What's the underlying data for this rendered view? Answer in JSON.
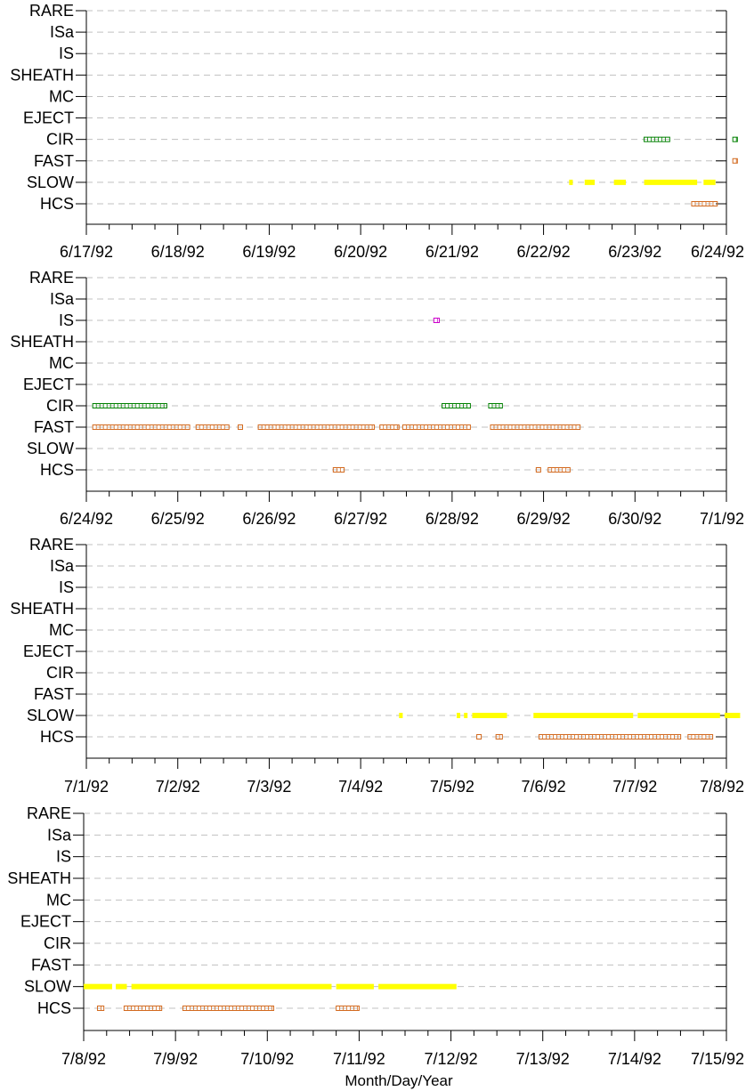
{
  "chart_data": {
    "type": "scatter",
    "xlabel": "Month/Day/Year",
    "categories": [
      "RARE",
      "ISa",
      "IS",
      "SHEATH",
      "MC",
      "EJECT",
      "CIR",
      "FAST",
      "SLOW",
      "HCS"
    ],
    "colors": {
      "SLOW": "#ffff00",
      "HCS": "#d2691e",
      "FAST": "#d2691e",
      "CIR": "#008000",
      "IS": "#cc00cc",
      "grid": "#c0c0c0",
      "axis": "#000000"
    },
    "panels": [
      {
        "ticks": [
          "6/17/92",
          "6/18/92",
          "6/19/92",
          "6/20/92",
          "6/21/92",
          "6/22/92",
          "6/23/92",
          "6/24/92"
        ],
        "series": {
          "CIR": [
            [
              6.1,
              6.38
            ],
            [
              7.07,
              7.12
            ]
          ],
          "FAST": [
            [
              7.07,
              7.12
            ]
          ],
          "SLOW": [
            [
              5.28,
              5.32
            ],
            [
              5.45,
              5.56
            ],
            [
              5.77,
              5.9
            ],
            [
              6.1,
              6.68
            ],
            [
              6.75,
              6.88
            ]
          ],
          "HCS": [
            [
              6.62,
              6.9
            ]
          ]
        }
      },
      {
        "ticks": [
          "6/24/92",
          "6/25/92",
          "6/26/92",
          "6/27/92",
          "6/28/92",
          "6/29/92",
          "6/30/92",
          "7/1/92"
        ],
        "series": {
          "IS": [
            [
              3.8,
              3.86
            ]
          ],
          "CIR": [
            [
              0.07,
              0.88
            ],
            [
              3.89,
              4.2
            ],
            [
              4.4,
              4.55
            ]
          ],
          "FAST": [
            [
              0.07,
              1.13
            ],
            [
              1.2,
              1.56
            ],
            [
              1.66,
              1.7
            ],
            [
              1.88,
              3.15
            ],
            [
              3.21,
              3.42
            ],
            [
              3.46,
              4.2
            ],
            [
              4.42,
              5.4
            ]
          ],
          "SLOW": [],
          "HCS": [
            [
              2.7,
              2.82
            ],
            [
              4.92,
              4.96
            ],
            [
              5.05,
              5.29
            ]
          ]
        }
      },
      {
        "ticks": [
          "7/1/92",
          "7/2/92",
          "7/3/92",
          "7/4/92",
          "7/5/92",
          "7/6/92",
          "7/7/92",
          "7/8/92"
        ],
        "series": {
          "SLOW": [
            [
              3.42,
              3.46
            ],
            [
              4.05,
              4.08
            ],
            [
              4.13,
              4.16
            ],
            [
              4.22,
              4.6
            ],
            [
              4.89,
              5.98
            ],
            [
              6.03,
              6.93
            ],
            [
              6.98,
              7.15
            ]
          ],
          "HCS": [
            [
              4.27,
              4.3
            ],
            [
              4.48,
              4.55
            ],
            [
              4.95,
              6.5
            ],
            [
              6.58,
              6.85
            ]
          ]
        }
      },
      {
        "ticks": [
          "7/8/92",
          "7/9/92",
          "7/10/92",
          "7/11/92",
          "7/12/92",
          "7/13/92",
          "7/14/92",
          "7/15/92"
        ],
        "series": {
          "SLOW": [
            [
              0.0,
              0.31
            ],
            [
              0.35,
              0.47
            ],
            [
              0.52,
              2.7
            ],
            [
              2.75,
              3.16
            ],
            [
              3.21,
              4.06
            ]
          ],
          "HCS": [
            [
              0.15,
              0.22
            ],
            [
              0.44,
              0.85
            ],
            [
              1.08,
              2.07
            ],
            [
              2.75,
              3.0
            ]
          ]
        }
      }
    ]
  }
}
